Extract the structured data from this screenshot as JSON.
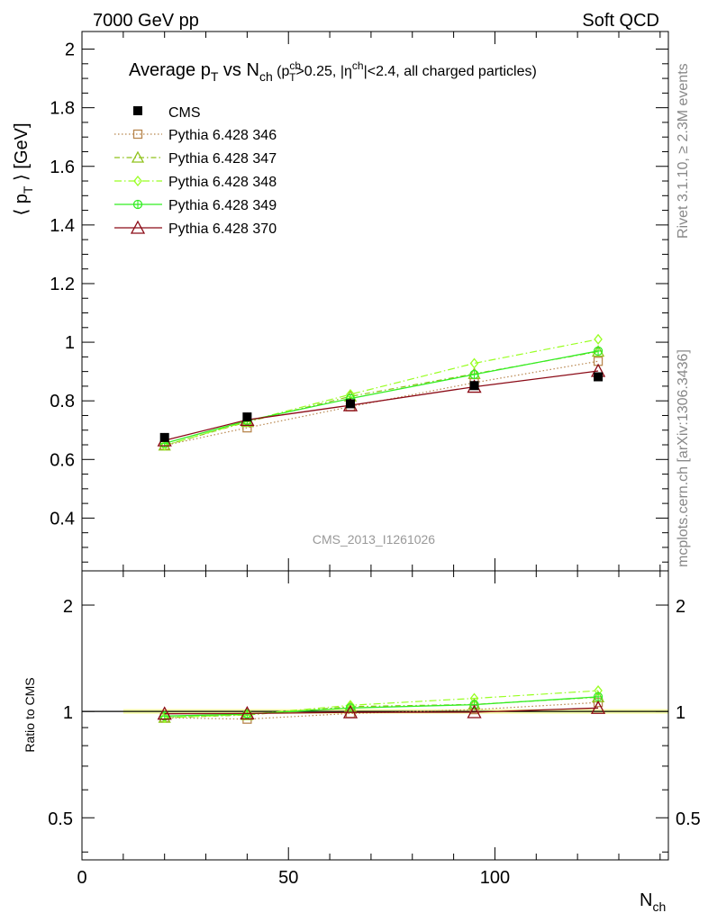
{
  "header": {
    "left": "7000 GeV pp",
    "right": "Soft QCD"
  },
  "side": {
    "rivet": "Rivet 3.1.10, ≥ 2.3M events",
    "mcplots": "mcplots.cern.ch [arXiv:1306.3436]"
  },
  "watermark": "CMS_2013_I1261026",
  "colors": {
    "cms": "#000000",
    "p346": "#b8864e",
    "p347": "#8fc21a",
    "p348": "#99ff22",
    "p349": "#33ee22",
    "p370": "#8b0a16"
  },
  "chart_data": [
    {
      "type": "line",
      "title": {
        "t1": "Average p",
        "t1sub": "T",
        "t2": " vs N",
        "t2sub": "ch",
        "t3": " (p",
        "t3sup": "ch",
        "t3sub": "T",
        "t4": ">0.25, |η",
        "t4sup": "ch",
        "t5": "|<2.4, all charged particles)"
      },
      "ylabel": {
        "pre": "⟨ p",
        "sub": "T",
        "post": " ⟩ [GeV]"
      },
      "xlim": [
        0,
        142
      ],
      "ylim": [
        0.22,
        2.06
      ],
      "yticks": [
        0.4,
        0.6,
        0.8,
        1.0,
        1.2,
        1.4,
        1.6,
        1.8,
        2.0
      ],
      "ytick_labels": [
        "0.4",
        "0.6",
        "0.8",
        "1",
        "1.2",
        "1.4",
        "1.6",
        "1.8",
        "2"
      ],
      "grid": false,
      "legend": "top-left",
      "x": [
        20,
        40,
        65,
        95,
        125
      ],
      "series": [
        {
          "name": "CMS",
          "key": "cms",
          "values": [
            0.675,
            0.745,
            0.79,
            0.852,
            0.882
          ]
        },
        {
          "name": "Pythia 6.428 346",
          "key": "p346",
          "values": [
            0.648,
            0.708,
            0.78,
            0.862,
            0.935
          ]
        },
        {
          "name": "Pythia 6.428 347",
          "key": "p347",
          "values": [
            0.648,
            0.728,
            0.815,
            0.892,
            0.968
          ]
        },
        {
          "name": "Pythia 6.428 348",
          "key": "p348",
          "values": [
            0.648,
            0.73,
            0.822,
            0.928,
            1.01
          ]
        },
        {
          "name": "Pythia 6.428 349",
          "key": "p349",
          "values": [
            0.655,
            0.732,
            0.808,
            0.89,
            0.97
          ]
        },
        {
          "name": "Pythia 6.428 370",
          "key": "p370",
          "values": [
            0.665,
            0.735,
            0.785,
            0.848,
            0.902
          ]
        }
      ]
    },
    {
      "type": "line",
      "ylabel": "Ratio to CMS",
      "xlabel": {
        "main": "N",
        "sub": "ch"
      },
      "xlim": [
        0,
        142
      ],
      "ylim": [
        0.38,
        2.5
      ],
      "log_y": true,
      "xticks": [
        0,
        50,
        100
      ],
      "xtick_labels": [
        "0",
        "50",
        "100"
      ],
      "yticks": [
        0.5,
        1,
        2
      ],
      "ytick_labels": [
        "0.5",
        "1",
        "2"
      ],
      "band_xrange": [
        10,
        142
      ],
      "x": [
        20,
        40,
        65,
        95,
        125
      ],
      "series": [
        {
          "key": "p346",
          "values": [
            0.96,
            0.951,
            0.987,
            1.012,
            1.06
          ]
        },
        {
          "key": "p347",
          "values": [
            0.96,
            0.977,
            1.032,
            1.047,
            1.097
          ]
        },
        {
          "key": "p348",
          "values": [
            0.96,
            0.98,
            1.041,
            1.089,
            1.145
          ]
        },
        {
          "key": "p349",
          "values": [
            0.97,
            0.983,
            1.023,
            1.045,
            1.1
          ]
        },
        {
          "key": "p370",
          "values": [
            0.985,
            0.987,
            0.994,
            0.995,
            1.023
          ]
        }
      ]
    }
  ]
}
